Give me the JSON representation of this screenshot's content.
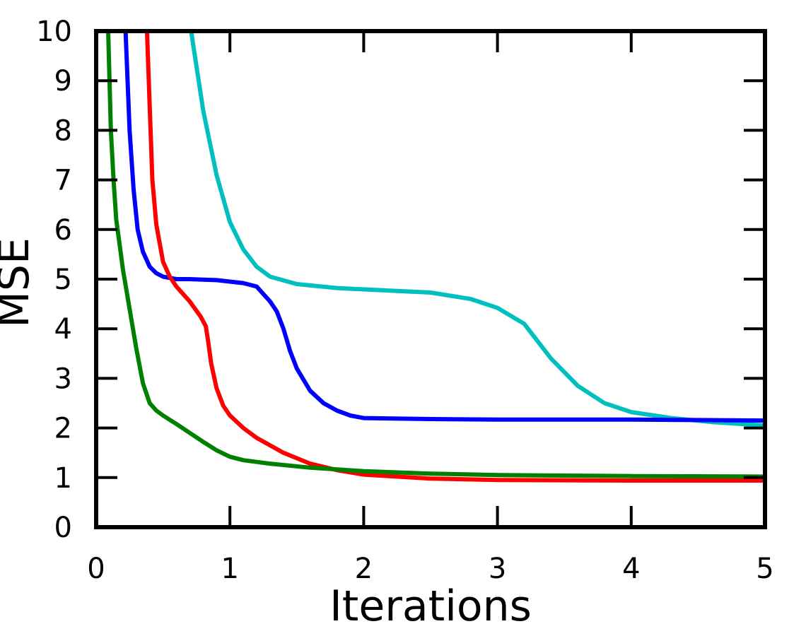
{
  "chart_data": {
    "type": "line",
    "title": "",
    "xlabel": "Iterations",
    "ylabel": "MSE",
    "xlim": [
      0,
      5
    ],
    "ylim": [
      0,
      10
    ],
    "xticks": [
      "0",
      "1",
      "2",
      "3",
      "4",
      "5"
    ],
    "yticks": [
      "0",
      "1",
      "2",
      "3",
      "4",
      "5",
      "6",
      "7",
      "8",
      "9",
      "10"
    ],
    "grid": false,
    "legend": "none",
    "series": [
      {
        "color": "#00bfbf",
        "x": [
          0.71,
          0.8,
          0.9,
          1.0,
          1.1,
          1.2,
          1.3,
          1.5,
          1.8,
          2.1,
          2.5,
          2.8,
          3.0,
          3.2,
          3.4,
          3.6,
          3.8,
          4.0,
          4.3,
          4.6,
          5.0
        ],
        "y": [
          10.0,
          8.4,
          7.1,
          6.15,
          5.6,
          5.25,
          5.05,
          4.9,
          4.82,
          4.78,
          4.73,
          4.6,
          4.42,
          4.1,
          3.4,
          2.85,
          2.5,
          2.32,
          2.2,
          2.12,
          2.05
        ]
      },
      {
        "color": "#0000ff",
        "x": [
          0.22,
          0.25,
          0.28,
          0.31,
          0.35,
          0.4,
          0.45,
          0.5,
          0.6,
          0.7,
          0.8,
          0.9,
          1.0,
          1.1,
          1.2,
          1.25,
          1.3,
          1.35,
          1.4,
          1.45,
          1.5,
          1.6,
          1.7,
          1.8,
          1.9,
          2.0,
          2.5,
          3.0,
          3.5,
          4.0,
          4.5,
          5.0
        ],
        "y": [
          10.0,
          8.0,
          6.8,
          6.0,
          5.55,
          5.25,
          5.12,
          5.05,
          5.0,
          5.0,
          4.99,
          4.98,
          4.95,
          4.92,
          4.85,
          4.7,
          4.55,
          4.35,
          4.0,
          3.55,
          3.2,
          2.75,
          2.5,
          2.35,
          2.25,
          2.2,
          2.18,
          2.17,
          2.17,
          2.17,
          2.16,
          2.15
        ]
      },
      {
        "color": "#ff0000",
        "x": [
          0.38,
          0.4,
          0.42,
          0.45,
          0.5,
          0.55,
          0.6,
          0.7,
          0.78,
          0.82,
          0.84,
          0.86,
          0.9,
          0.95,
          1.0,
          1.1,
          1.2,
          1.4,
          1.6,
          1.8,
          2.0,
          2.5,
          3.0,
          4.0,
          5.0
        ],
        "y": [
          10.0,
          8.5,
          7.0,
          6.1,
          5.35,
          5.05,
          4.85,
          4.55,
          4.25,
          4.05,
          3.7,
          3.3,
          2.8,
          2.45,
          2.25,
          2.0,
          1.8,
          1.5,
          1.28,
          1.15,
          1.06,
          0.98,
          0.95,
          0.94,
          0.94
        ]
      },
      {
        "color": "#008000",
        "x": [
          0.09,
          0.1,
          0.11,
          0.13,
          0.15,
          0.18,
          0.2,
          0.25,
          0.3,
          0.35,
          0.4,
          0.45,
          0.5,
          0.6,
          0.7,
          0.8,
          0.9,
          1.0,
          1.1,
          1.3,
          1.6,
          2.0,
          2.5,
          3.0,
          4.0,
          5.0
        ],
        "y": [
          10.0,
          9.0,
          8.0,
          7.0,
          6.2,
          5.6,
          5.2,
          4.4,
          3.6,
          2.9,
          2.5,
          2.35,
          2.25,
          2.08,
          1.9,
          1.72,
          1.55,
          1.42,
          1.35,
          1.28,
          1.2,
          1.13,
          1.08,
          1.05,
          1.03,
          1.02
        ]
      }
    ]
  }
}
